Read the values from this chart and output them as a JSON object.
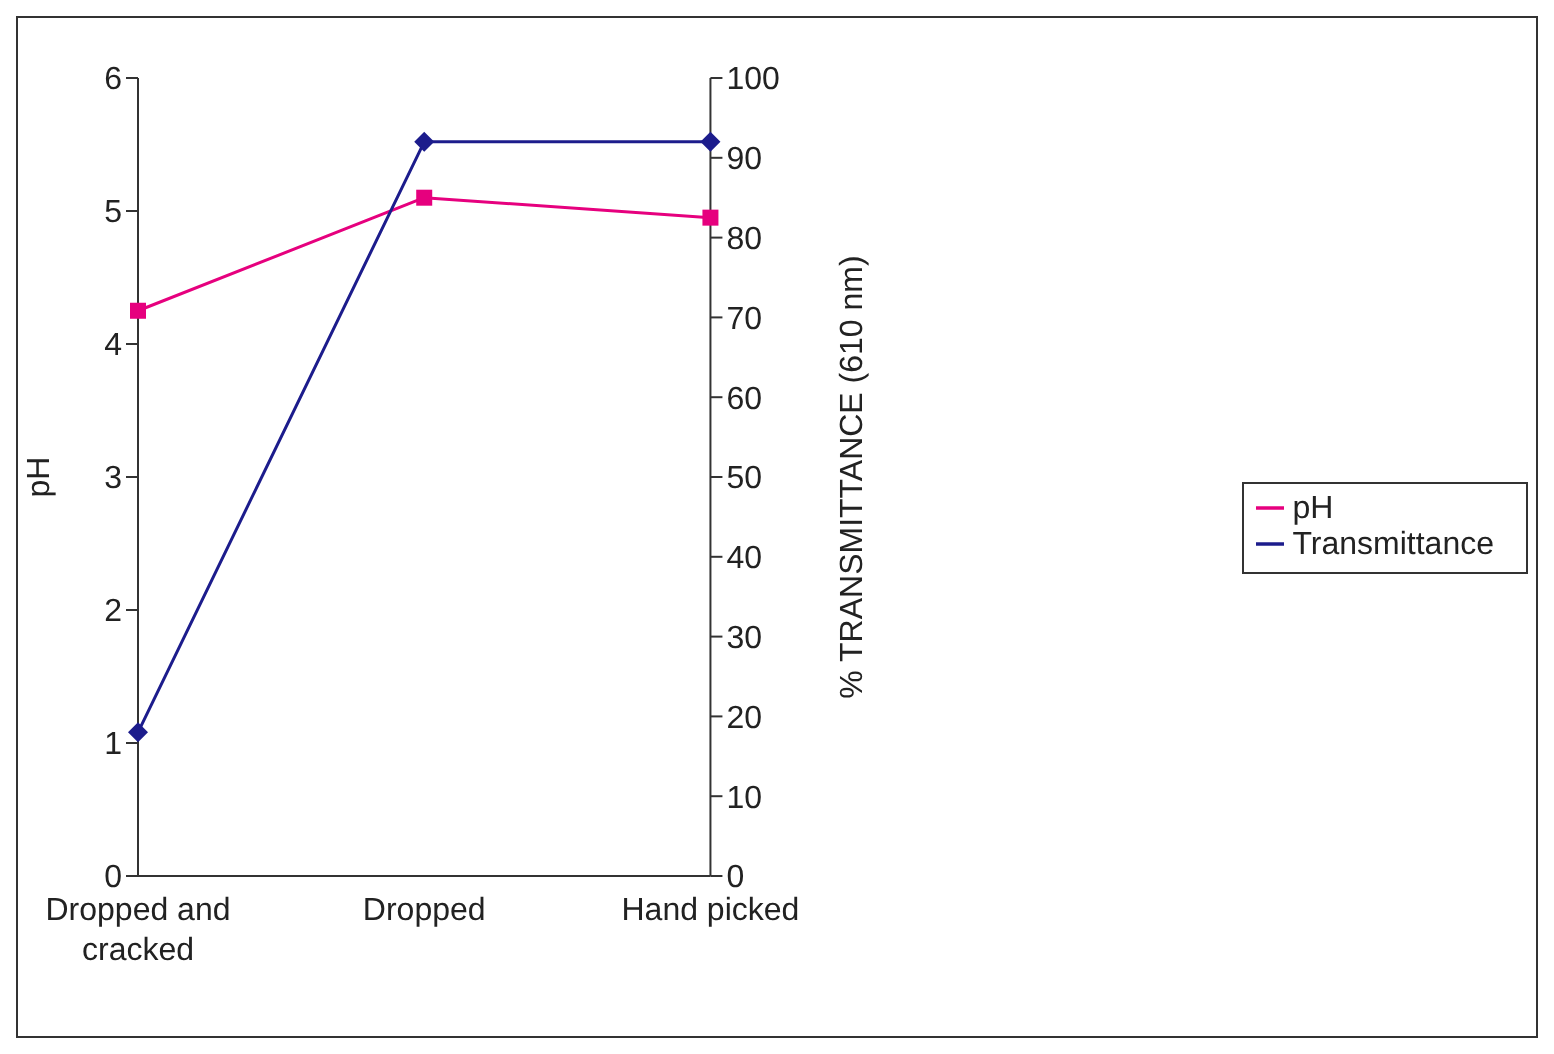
{
  "chart_data": {
    "type": "line",
    "categories": [
      "Dropped and cracked",
      "Dropped",
      "Hand picked"
    ],
    "ylabel": "pH",
    "y2label": "% TRANSMITTANCE (610 nm)",
    "ylim": [
      0,
      6
    ],
    "yticks": [
      0,
      1,
      2,
      3,
      4,
      5,
      6
    ],
    "y2lim": [
      0,
      100
    ],
    "y2ticks": [
      0,
      10,
      20,
      30,
      40,
      50,
      60,
      70,
      80,
      90,
      100
    ],
    "grid": false,
    "legend": "right",
    "series": [
      {
        "name": "pH",
        "color": "#e6007e",
        "marker": "square",
        "values": [
          4.25,
          5.1,
          4.95
        ]
      },
      {
        "name": "Transmittance",
        "color": "#1c1c8c",
        "marker": "diamond",
        "axis": "y2",
        "values": [
          18,
          92,
          92
        ]
      }
    ]
  }
}
